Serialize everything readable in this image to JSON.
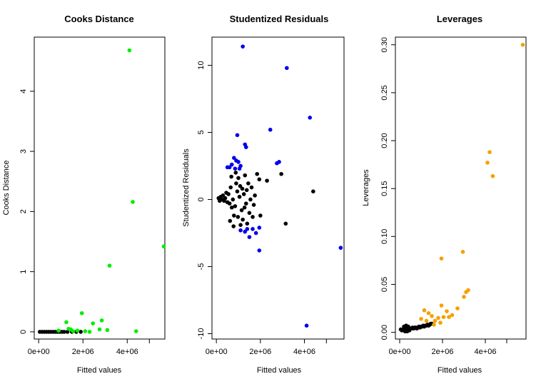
{
  "chart_data": [
    {
      "type": "scatter",
      "title": "Cooks Distance",
      "xlabel": "Fitted values",
      "ylabel": "Cooks Distance",
      "xlim": [
        -200000,
        5700000
      ],
      "ylim": [
        -0.12,
        4.9
      ],
      "x_ticks": [
        0,
        2000000,
        4000000
      ],
      "x_tick_labels": [
        "0e+00",
        "2e+06",
        "4e+06"
      ],
      "x_tick_marks": [
        0,
        2000000,
        4000000,
        5000000
      ],
      "y_ticks": [
        0,
        1,
        2,
        3,
        4
      ],
      "y_tick_labels": [
        "0",
        "1",
        "2",
        "3",
        "4"
      ],
      "grid": false,
      "series": [
        {
          "color": "#00ee00",
          "points": [
            [
              4100000,
              4.68
            ],
            [
              4250000,
              2.16
            ],
            [
              5650000,
              1.42
            ],
            [
              3200000,
              1.1
            ],
            [
              1950000,
              0.31
            ],
            [
              2850000,
              0.19
            ],
            [
              1250000,
              0.16
            ],
            [
              2450000,
              0.14
            ],
            [
              2750000,
              0.04
            ],
            [
              3100000,
              0.03
            ],
            [
              1450000,
              0.04
            ],
            [
              1750000,
              0.02
            ],
            [
              2100000,
              0.01
            ],
            [
              4400000,
              0.01
            ],
            [
              900000,
              0.02
            ],
            [
              1550000,
              0.01
            ],
            [
              2300000,
              0.0
            ],
            [
              1350000,
              0.05
            ]
          ]
        },
        {
          "color": "#000000",
          "points": [
            [
              50000,
              0.0
            ],
            [
              150000,
              0.0
            ],
            [
              250000,
              0.0
            ],
            [
              350000,
              0.0
            ],
            [
              450000,
              0.0
            ],
            [
              550000,
              0.0
            ],
            [
              650000,
              0.0
            ],
            [
              750000,
              0.0
            ],
            [
              850000,
              0.0
            ],
            [
              950000,
              0.0
            ],
            [
              1050000,
              0.0
            ],
            [
              1150000,
              0.0
            ],
            [
              1300000,
              0.0
            ],
            [
              1500000,
              0.0
            ],
            [
              1700000,
              0.0
            ],
            [
              1900000,
              0.0
            ]
          ]
        }
      ]
    },
    {
      "type": "scatter",
      "title": "Studentized Residuals",
      "xlabel": "Fitted values",
      "ylabel": "Studentized Residuals",
      "xlim": [
        -200000,
        5800000
      ],
      "ylim": [
        -10.4,
        12.1
      ],
      "x_ticks": [
        0,
        2000000,
        4000000
      ],
      "x_tick_labels": [
        "0e+00",
        "2e+06",
        "4e+06"
      ],
      "x_tick_marks": [
        0,
        2000000,
        4000000,
        5000000
      ],
      "y_ticks": [
        -10,
        -5,
        0,
        5,
        10
      ],
      "y_tick_labels": [
        "-10",
        "-5",
        "0",
        "5",
        "10"
      ],
      "grid": false,
      "series": [
        {
          "color": "#0000ee",
          "points": [
            [
              1200000,
              11.4
            ],
            [
              3200000,
              9.8
            ],
            [
              4250000,
              6.1
            ],
            [
              2450000,
              5.2
            ],
            [
              950000,
              4.8
            ],
            [
              1300000,
              4.1
            ],
            [
              1350000,
              3.9
            ],
            [
              800000,
              3.1
            ],
            [
              900000,
              2.9
            ],
            [
              1000000,
              2.8
            ],
            [
              1100000,
              2.5
            ],
            [
              700000,
              2.6
            ],
            [
              1050000,
              2.3
            ],
            [
              500000,
              2.4
            ],
            [
              600000,
              2.4
            ],
            [
              850000,
              2.3
            ],
            [
              2750000,
              2.7
            ],
            [
              2850000,
              2.8
            ],
            [
              1300000,
              -2.4
            ],
            [
              1400000,
              -2.2
            ],
            [
              1650000,
              -2.2
            ],
            [
              1500000,
              -2.8
            ],
            [
              1950000,
              -2.1
            ],
            [
              1800000,
              -2.5
            ],
            [
              1950000,
              -3.8
            ],
            [
              5650000,
              -3.6
            ],
            [
              4100000,
              -9.4
            ],
            [
              1100000,
              -2.3
            ]
          ]
        },
        {
          "color": "#000000",
          "points": [
            [
              2950000,
              1.9
            ],
            [
              4400000,
              0.6
            ],
            [
              3150000,
              -1.8
            ],
            [
              2300000,
              1.4
            ],
            [
              1850000,
              1.9
            ],
            [
              1950000,
              1.5
            ],
            [
              1600000,
              0.9
            ],
            [
              1750000,
              0.3
            ],
            [
              1700000,
              -0.4
            ],
            [
              1450000,
              1.2
            ],
            [
              1500000,
              -1.0
            ],
            [
              1400000,
              -1.8
            ],
            [
              1200000,
              -1.5
            ],
            [
              1100000,
              -1.9
            ],
            [
              1300000,
              1.8
            ],
            [
              1000000,
              1.6
            ],
            [
              900000,
              1.2
            ],
            [
              800000,
              -1.2
            ],
            [
              700000,
              -0.6
            ],
            [
              650000,
              0.9
            ],
            [
              600000,
              -0.3
            ],
            [
              550000,
              0.4
            ],
            [
              500000,
              -0.2
            ],
            [
              450000,
              0.5
            ],
            [
              400000,
              0.1
            ],
            [
              350000,
              -0.1
            ],
            [
              300000,
              0.3
            ],
            [
              250000,
              0.0
            ],
            [
              200000,
              0.2
            ],
            [
              150000,
              -0.1
            ],
            [
              100000,
              0.1
            ],
            [
              750000,
              0.0
            ],
            [
              850000,
              -0.5
            ],
            [
              950000,
              0.6
            ],
            [
              1050000,
              0.2
            ],
            [
              1150000,
              -0.8
            ],
            [
              1250000,
              0.4
            ],
            [
              1350000,
              -0.3
            ],
            [
              1550000,
              0.0
            ],
            [
              620000,
              -1.6
            ],
            [
              680000,
              1.7
            ],
            [
              780000,
              -2.0
            ],
            [
              880000,
              2.0
            ],
            [
              980000,
              -1.3
            ],
            [
              1080000,
              1.0
            ],
            [
              1180000,
              0.8
            ],
            [
              1280000,
              -0.6
            ],
            [
              1380000,
              0.7
            ],
            [
              2000000,
              -1.2
            ],
            [
              1650000,
              -1.3
            ]
          ]
        }
      ]
    },
    {
      "type": "scatter",
      "title": "Leverages",
      "xlabel": "Fitted values",
      "ylabel": "Leverages",
      "xlim": [
        -200000,
        5900000
      ],
      "ylim": [
        -0.007,
        0.308
      ],
      "x_ticks": [
        0,
        2000000,
        4000000
      ],
      "x_tick_labels": [
        "0e+00",
        "2e+06",
        "4e+06"
      ],
      "x_tick_marks": [
        0,
        2000000,
        4000000,
        5000000
      ],
      "y_ticks": [
        0.0,
        0.05,
        0.1,
        0.15,
        0.2,
        0.25,
        0.3
      ],
      "y_tick_labels": [
        "0.00",
        "0.05",
        "0.10",
        "0.15",
        "0.20",
        "0.25",
        "0.30"
      ],
      "grid": false,
      "series": [
        {
          "color": "#f5a000",
          "points": [
            [
              5750000,
              0.3
            ],
            [
              4200000,
              0.188
            ],
            [
              4100000,
              0.177
            ],
            [
              4350000,
              0.163
            ],
            [
              2950000,
              0.084
            ],
            [
              1950000,
              0.077
            ],
            [
              3200000,
              0.044
            ],
            [
              3100000,
              0.042
            ],
            [
              3000000,
              0.037
            ],
            [
              2700000,
              0.025
            ],
            [
              1950000,
              0.028
            ],
            [
              2200000,
              0.022
            ],
            [
              1150000,
              0.023
            ],
            [
              1350000,
              0.02
            ],
            [
              1500000,
              0.017
            ],
            [
              1800000,
              0.015
            ],
            [
              2050000,
              0.016
            ],
            [
              2300000,
              0.016
            ],
            [
              1650000,
              0.012
            ],
            [
              1000000,
              0.014
            ],
            [
              1250000,
              0.012
            ],
            [
              2450000,
              0.018
            ],
            [
              1900000,
              0.01
            ],
            [
              1600000,
              0.008
            ]
          ]
        },
        {
          "color": "#000000",
          "points": [
            [
              50000,
              0.003
            ],
            [
              100000,
              0.002
            ],
            [
              150000,
              0.003
            ],
            [
              200000,
              0.003
            ],
            [
              250000,
              0.004
            ],
            [
              300000,
              0.003
            ],
            [
              350000,
              0.004
            ],
            [
              400000,
              0.004
            ],
            [
              450000,
              0.003
            ],
            [
              500000,
              0.004
            ],
            [
              550000,
              0.004
            ],
            [
              600000,
              0.005
            ],
            [
              650000,
              0.004
            ],
            [
              700000,
              0.005
            ],
            [
              750000,
              0.005
            ],
            [
              800000,
              0.004
            ],
            [
              850000,
              0.005
            ],
            [
              900000,
              0.006
            ],
            [
              950000,
              0.005
            ],
            [
              1000000,
              0.006
            ],
            [
              1050000,
              0.006
            ],
            [
              1100000,
              0.007
            ],
            [
              1150000,
              0.006
            ],
            [
              1200000,
              0.007
            ],
            [
              1250000,
              0.007
            ],
            [
              1300000,
              0.008
            ],
            [
              1350000,
              0.007
            ],
            [
              1400000,
              0.008
            ],
            [
              1450000,
              0.009
            ],
            [
              1500000,
              0.009
            ],
            [
              200000,
              0.006
            ],
            [
              300000,
              0.007
            ],
            [
              400000,
              0.006
            ],
            [
              250000,
              0.001
            ],
            [
              350000,
              0.001
            ],
            [
              450000,
              0.002
            ]
          ]
        }
      ]
    }
  ]
}
